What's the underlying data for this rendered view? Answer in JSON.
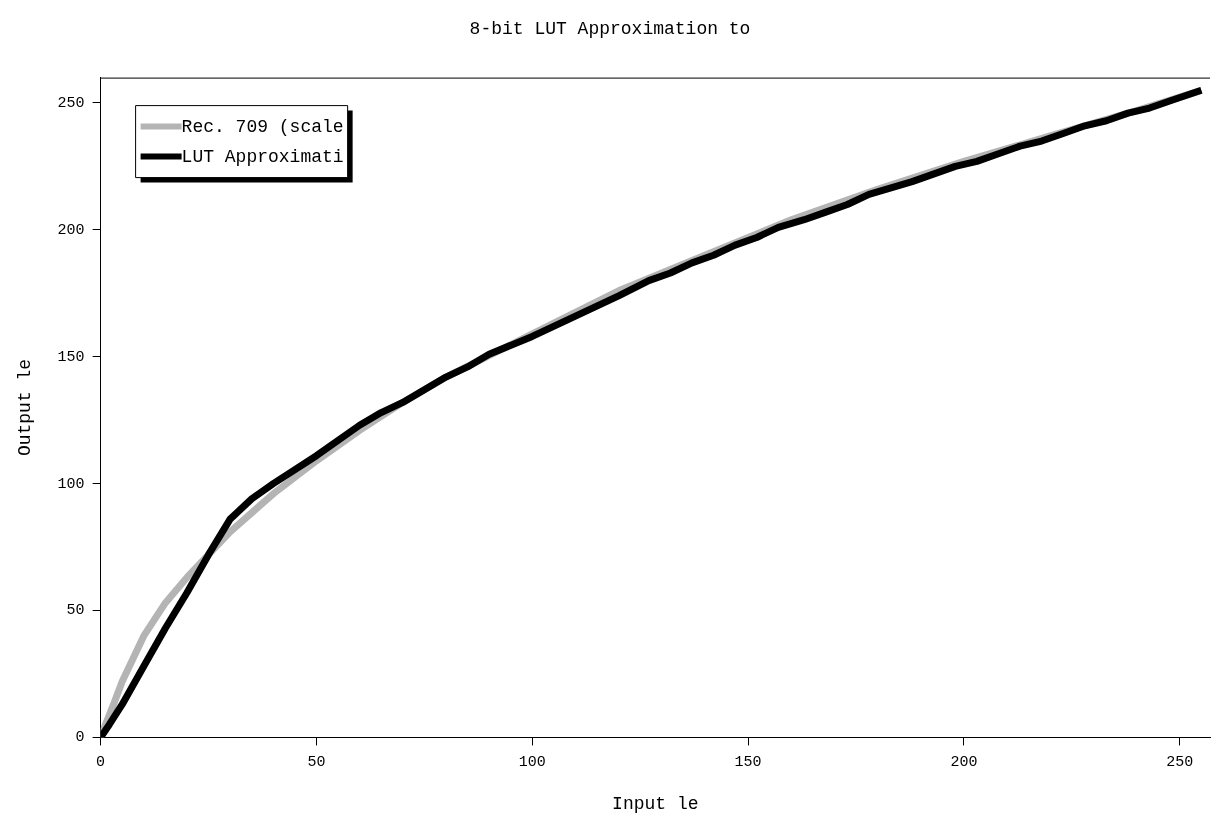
{
  "chart_data": {
    "type": "line",
    "title": "8-bit LUT Approximation to",
    "xlabel": "Input le",
    "ylabel": "Output le",
    "xlim": [
      0,
      257
    ],
    "ylim": [
      0,
      260
    ],
    "xticks": [
      0,
      50,
      100,
      150,
      200,
      250
    ],
    "yticks": [
      0,
      50,
      100,
      150,
      200,
      250
    ],
    "grid": false,
    "legend": "top left",
    "marker": "none",
    "line_style": "solid",
    "series": [
      {
        "name": "Rec. 709 (scale",
        "color": "#b4b4b4",
        "x": [
          0,
          1,
          3,
          5,
          10,
          15,
          20,
          25,
          30,
          40,
          50,
          60,
          70,
          80,
          100,
          120,
          140,
          160,
          180,
          200,
          220,
          240,
          255
        ],
        "values": [
          0,
          4.5,
          13,
          22,
          40,
          53,
          63,
          72,
          81,
          96,
          109,
          121,
          132,
          142,
          159,
          176,
          190,
          204,
          216,
          227,
          237,
          247,
          255
        ]
      },
      {
        "name": "LUT Approximati",
        "color": "#000000",
        "x": [
          0,
          2,
          5,
          10,
          15,
          20,
          25,
          30,
          35,
          40,
          50,
          60,
          65,
          70,
          80,
          85,
          90,
          100,
          110,
          120,
          127,
          132,
          137,
          142,
          147,
          152,
          157,
          163,
          168,
          173,
          178,
          188,
          198,
          203,
          208,
          213,
          218,
          223,
          228,
          233,
          238,
          243,
          248,
          255
        ],
        "values": [
          0,
          5,
          13,
          28,
          43,
          57,
          72,
          86,
          94,
          100,
          111,
          123,
          128,
          132,
          142,
          146,
          151,
          158,
          166,
          174,
          180,
          183,
          187,
          190,
          194,
          197,
          201,
          204,
          207,
          210,
          214,
          219,
          225,
          227,
          230,
          233,
          235,
          238,
          241,
          243,
          246,
          248,
          251,
          255
        ]
      }
    ]
  }
}
